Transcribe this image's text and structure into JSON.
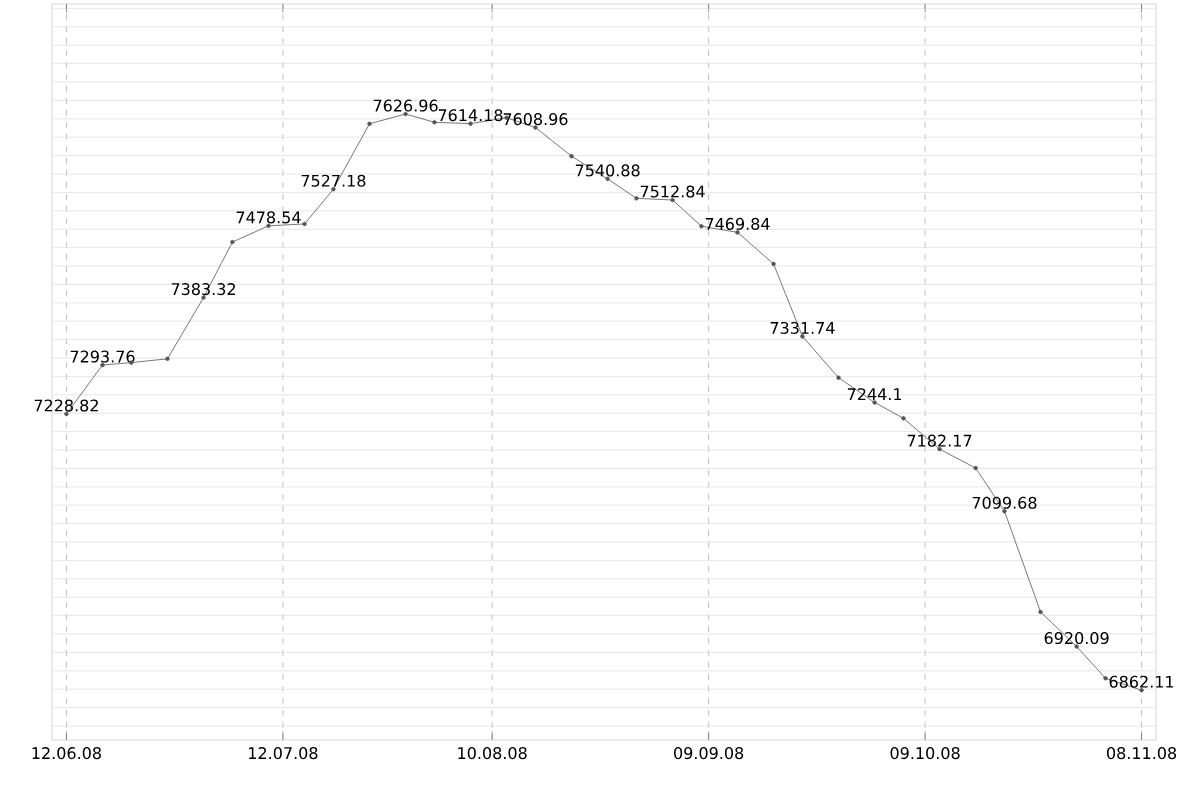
{
  "chart_data": {
    "type": "line",
    "x": [
      "2008-06-12",
      "2008-06-17",
      "2008-06-21",
      "2008-06-26",
      "2008-07-01",
      "2008-07-05",
      "2008-07-10",
      "2008-07-15",
      "2008-07-19",
      "2008-07-24",
      "2008-07-29",
      "2008-08-02",
      "2008-08-07",
      "2008-08-12",
      "2008-08-16",
      "2008-08-21",
      "2008-08-26",
      "2008-08-30",
      "2008-09-04",
      "2008-09-08",
      "2008-09-13",
      "2008-09-18",
      "2008-09-22",
      "2008-09-27",
      "2008-10-02",
      "2008-10-06",
      "2008-10-11",
      "2008-10-16",
      "2008-10-20",
      "2008-10-25",
      "2008-10-30",
      "2008-11-03",
      "2008-11-08"
    ],
    "series": [
      {
        "color": "#555555",
        "values": [
          7228.82,
          7293.76,
          7297,
          7302,
          7383.32,
          7457,
          7478.54,
          7481,
          7527.18,
          7614,
          7626.96,
          7616,
          7614.18,
          7622,
          7608.96,
          7571,
          7540.88,
          7515,
          7512.84,
          7478,
          7469.84,
          7428,
          7331.74,
          7277,
          7244.1,
          7223,
          7182.17,
          7157,
          7099.68,
          6966,
          6920.09,
          6878,
          6862.11
        ],
        "value_labels": [
          "7228.82",
          "7293.76",
          null,
          null,
          "7383.32",
          null,
          "7478.54",
          null,
          "7527.18",
          null,
          "7626.96",
          null,
          "7614.18",
          null,
          "7608.96",
          null,
          "7540.88",
          null,
          "7512.84",
          null,
          "7469.84",
          null,
          "7331.74",
          null,
          "7244.1",
          null,
          "7182.17",
          null,
          "7099.68",
          null,
          "6920.09",
          null,
          "6862.11"
        ]
      }
    ],
    "xlim": [
      "2008-06-10",
      "2008-11-10"
    ],
    "xticks": [
      {
        "value": "2008-06-12",
        "label": "12.06.08"
      },
      {
        "value": "2008-07-12",
        "label": "12.07.08"
      },
      {
        "value": "2008-08-10",
        "label": "10.08.08"
      },
      {
        "value": "2008-09-09",
        "label": "09.09.08"
      },
      {
        "value": "2008-10-09",
        "label": "09.10.08"
      },
      {
        "value": "2008-11-08",
        "label": "08.11.08"
      }
    ],
    "ylim": [
      6796,
      7773
    ],
    "grid": true,
    "tick_labels": "x",
    "marker": "circle",
    "line_style": "solid"
  }
}
